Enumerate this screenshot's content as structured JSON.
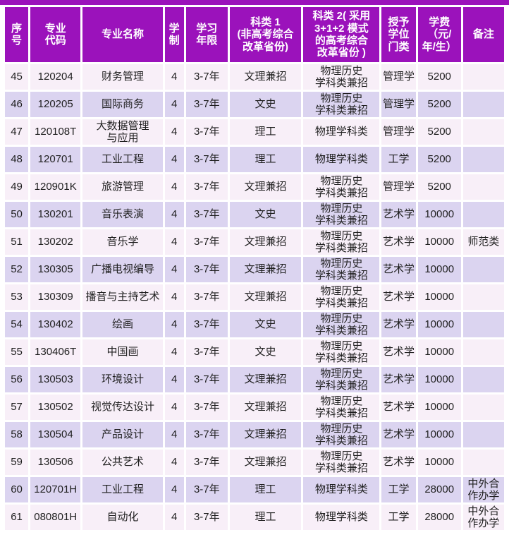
{
  "colors": {
    "header_bg": "#9b12bb",
    "header_text": "#ffffff",
    "row_pink": "#f8eff8",
    "row_lavender": "#dbd4f0",
    "cell_text": "#1f1f1f",
    "page_bg": "#ffffff"
  },
  "table": {
    "columns": [
      {
        "label": "序\n号"
      },
      {
        "label": "专业\n代码"
      },
      {
        "label": "专业名称"
      },
      {
        "label": "学\n制"
      },
      {
        "label": "学习\n年限"
      },
      {
        "label": "科类 1\n(非高考综合\n改革省份)"
      },
      {
        "label": "科类 2( 采用\n3+1+2 模式\n的高考综合\n改革省份 )"
      },
      {
        "label": "授予\n学位\n门类"
      },
      {
        "label": "学费\n（元/\n年/生）"
      },
      {
        "label": "备注"
      }
    ],
    "rows": [
      [
        "45",
        "120204",
        "财务管理",
        "4",
        "3-7年",
        "文理兼招",
        "物理历史\n学科类兼招",
        "管理学",
        "5200",
        ""
      ],
      [
        "46",
        "120205",
        "国际商务",
        "4",
        "3-7年",
        "文史",
        "物理历史\n学科类兼招",
        "管理学",
        "5200",
        ""
      ],
      [
        "47",
        "120108T",
        "大数据管理\n与应用",
        "4",
        "3-7年",
        "理工",
        "物理学科类",
        "管理学",
        "5200",
        ""
      ],
      [
        "48",
        "120701",
        "工业工程",
        "4",
        "3-7年",
        "理工",
        "物理学科类",
        "工学",
        "5200",
        ""
      ],
      [
        "49",
        "120901K",
        "旅游管理",
        "4",
        "3-7年",
        "文理兼招",
        "物理历史\n学科类兼招",
        "管理学",
        "5200",
        ""
      ],
      [
        "50",
        "130201",
        "音乐表演",
        "4",
        "3-7年",
        "文史",
        "物理历史\n学科类兼招",
        "艺术学",
        "10000",
        ""
      ],
      [
        "51",
        "130202",
        "音乐学",
        "4",
        "3-7年",
        "文理兼招",
        "物理历史\n学科类兼招",
        "艺术学",
        "10000",
        "师范类"
      ],
      [
        "52",
        "130305",
        "广播电视编导",
        "4",
        "3-7年",
        "文理兼招",
        "物理历史\n学科类兼招",
        "艺术学",
        "10000",
        ""
      ],
      [
        "53",
        "130309",
        "播音与主持艺术",
        "4",
        "3-7年",
        "文理兼招",
        "物理历史\n学科类兼招",
        "艺术学",
        "10000",
        ""
      ],
      [
        "54",
        "130402",
        "绘画",
        "4",
        "3-7年",
        "文史",
        "物理历史\n学科类兼招",
        "艺术学",
        "10000",
        ""
      ],
      [
        "55",
        "130406T",
        "中国画",
        "4",
        "3-7年",
        "文史",
        "物理历史\n学科类兼招",
        "艺术学",
        "10000",
        ""
      ],
      [
        "56",
        "130503",
        "环境设计",
        "4",
        "3-7年",
        "文理兼招",
        "物理历史\n学科类兼招",
        "艺术学",
        "10000",
        ""
      ],
      [
        "57",
        "130502",
        "视觉传达设计",
        "4",
        "3-7年",
        "文理兼招",
        "物理历史\n学科类兼招",
        "艺术学",
        "10000",
        ""
      ],
      [
        "58",
        "130504",
        "产品设计",
        "4",
        "3-7年",
        "文理兼招",
        "物理历史\n学科类兼招",
        "艺术学",
        "10000",
        ""
      ],
      [
        "59",
        "130506",
        "公共艺术",
        "4",
        "3-7年",
        "文理兼招",
        "物理历史\n学科类兼招",
        "艺术学",
        "10000",
        ""
      ],
      [
        "60",
        "120701H",
        "工业工程",
        "4",
        "3-7年",
        "理工",
        "物理学科类",
        "工学",
        "28000",
        "中外合\n作办学"
      ],
      [
        "61",
        "080801H",
        "自动化",
        "4",
        "3-7年",
        "理工",
        "物理学科类",
        "工学",
        "28000",
        "中外合\n作办学"
      ]
    ]
  }
}
